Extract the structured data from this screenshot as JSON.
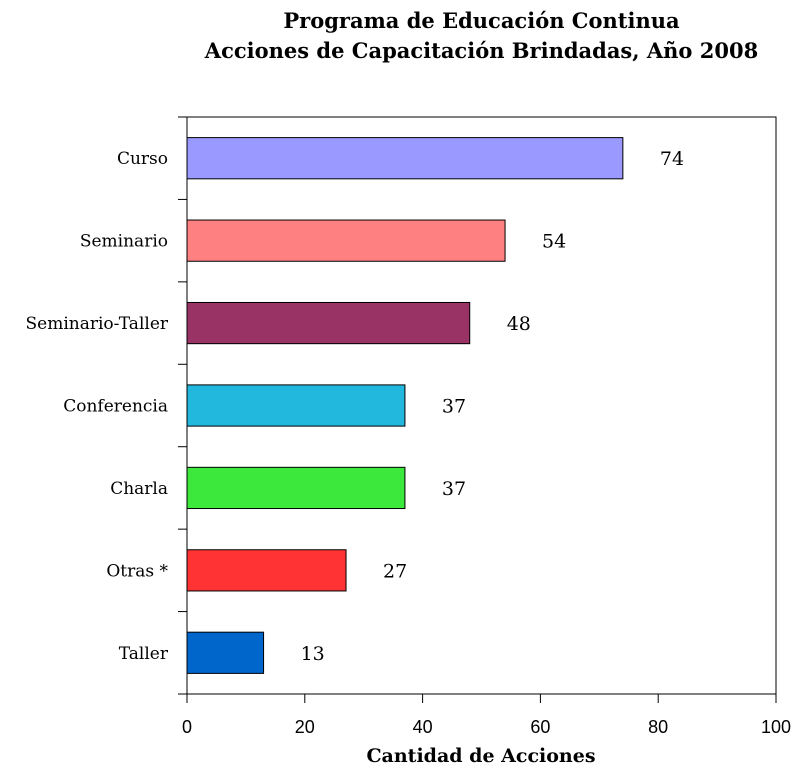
{
  "chart_data": {
    "type": "bar",
    "orientation": "horizontal",
    "title": "Programa de Educación Continua",
    "subtitle": "Acciones de Capacitación Brindadas, Año 2008",
    "xlabel": "Cantidad de Acciones",
    "ylabel": "",
    "xlim": [
      0,
      100
    ],
    "xticks": [
      "0",
      "20",
      "40",
      "60",
      "80",
      "100"
    ],
    "categories": [
      "Curso",
      "Seminario",
      "Seminario-Taller",
      "Conferencia",
      "Charla",
      "Otras *",
      "Taller"
    ],
    "values": [
      74,
      54,
      48,
      37,
      37,
      27,
      13
    ],
    "colors": [
      "#9999ff",
      "#ff8080",
      "#993366",
      "#22b8dd",
      "#3ce83c",
      "#ff3333",
      "#0066cc"
    ],
    "grid": false,
    "legend": "none"
  }
}
